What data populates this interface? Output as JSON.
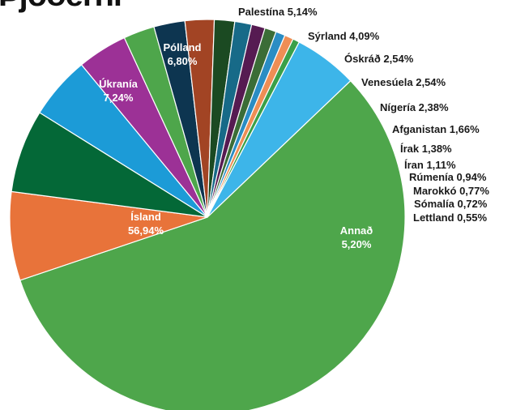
{
  "chart_data": {
    "type": "pie",
    "title": "Þjóðerni",
    "slices": [
      {
        "label": "Ísland",
        "value": "56,94%",
        "pct": 56.94,
        "color": "#4ea64b"
      },
      {
        "label": "Úkranía",
        "value": "7,24%",
        "pct": 7.24,
        "color": "#e8733a"
      },
      {
        "label": "Pólland",
        "value": "6,80%",
        "pct": 6.8,
        "color": "#046837"
      },
      {
        "label": "Palestína",
        "value": "5,14%",
        "pct": 5.14,
        "color": "#1c9bd7"
      },
      {
        "label": "Sýrland",
        "value": "4,09%",
        "pct": 4.09,
        "color": "#9c3196"
      },
      {
        "label": "Óskráð",
        "value": "2,54%",
        "pct": 2.54,
        "color": "#4ea64b"
      },
      {
        "label": "Venesúela",
        "value": "2,54%",
        "pct": 2.54,
        "color": "#0d3550"
      },
      {
        "label": "Nígería",
        "value": "2,38%",
        "pct": 2.38,
        "color": "#a24424"
      },
      {
        "label": "Afganistan",
        "value": "1,66%",
        "pct": 1.66,
        "color": "#1b4a22"
      },
      {
        "label": "Írak",
        "value": "1,38%",
        "pct": 1.38,
        "color": "#176a88"
      },
      {
        "label": "Íran",
        "value": "1,11%",
        "pct": 1.11,
        "color": "#561b52"
      },
      {
        "label": "Rúmenía",
        "value": "0,94%",
        "pct": 0.94,
        "color": "#3b6d37"
      },
      {
        "label": "Marokkó",
        "value": "0,77%",
        "pct": 0.77,
        "color": "#2a8dc4"
      },
      {
        "label": "Sómalía",
        "value": "0,72%",
        "pct": 0.72,
        "color": "#ee8e55"
      },
      {
        "label": "Lettland",
        "value": "0,55%",
        "pct": 0.55,
        "color": "#3aa048"
      },
      {
        "label": "Annað",
        "value": "5,20%",
        "pct": 5.2,
        "color": "#3db5e9"
      }
    ]
  }
}
